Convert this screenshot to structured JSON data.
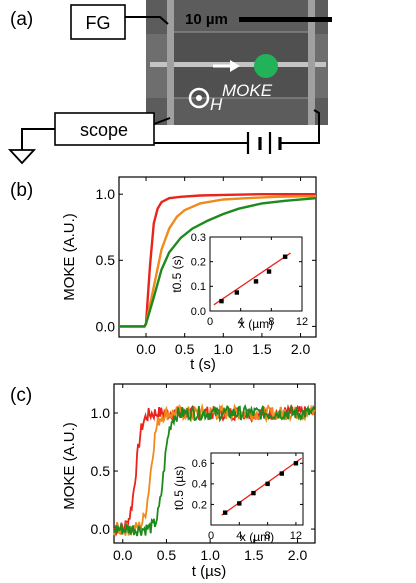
{
  "panel_a": {
    "label": "(a)",
    "fg_label": "FG",
    "scope_label": "scope",
    "scale_label": "10 µm",
    "moke_label": "MOKE",
    "field_label": "H",
    "colors": {
      "spot": "#22b35a",
      "sem_bg": "#6f6f6f",
      "wire": "#b9b9b9"
    }
  },
  "panel_b": {
    "label": "(b)",
    "chart_data": {
      "type": "line",
      "xlabel": "t (s)",
      "ylabel": "MOKE (A.U.)",
      "xlim": [
        -0.35,
        2.2
      ],
      "ylim": [
        -0.08,
        1.13
      ],
      "xticks": [
        0.0,
        0.5,
        1.0,
        1.5,
        2.0
      ],
      "xtick_labels": [
        "0.0",
        "0.5",
        "1.0",
        "1.5",
        "2.0"
      ],
      "yticks": [
        0.0,
        0.5,
        1.0
      ],
      "ytick_labels": [
        "0.0",
        "0.5",
        "1.0"
      ],
      "series": [
        {
          "color": "#e8241c",
          "x": [
            -0.35,
            -0.02,
            0.0,
            0.05,
            0.1,
            0.15,
            0.2,
            0.3,
            0.45,
            0.7,
            1.0,
            1.5,
            2.2
          ],
          "y": [
            0,
            0,
            0.02,
            0.45,
            0.78,
            0.89,
            0.94,
            0.97,
            0.98,
            0.99,
            0.995,
            1.0,
            1.0
          ]
        },
        {
          "color": "#f08a1c",
          "x": [
            -0.35,
            -0.02,
            0.0,
            0.1,
            0.2,
            0.3,
            0.4,
            0.5,
            0.7,
            1.0,
            1.3,
            1.7,
            2.2
          ],
          "y": [
            0,
            0,
            0.02,
            0.3,
            0.58,
            0.74,
            0.83,
            0.88,
            0.93,
            0.96,
            0.97,
            0.98,
            0.985
          ]
        },
        {
          "color": "#1e8a1e",
          "x": [
            -0.35,
            -0.02,
            0.0,
            0.1,
            0.2,
            0.3,
            0.45,
            0.6,
            0.8,
            1.0,
            1.2,
            1.5,
            1.8,
            2.2
          ],
          "y": [
            0,
            0,
            0.02,
            0.22,
            0.43,
            0.56,
            0.67,
            0.74,
            0.8,
            0.85,
            0.89,
            0.93,
            0.95,
            0.97
          ]
        }
      ],
      "inset": {
        "xlabel": "x (µm)",
        "ylabel": "t0.5 (s)",
        "xlim": [
          0,
          12
        ],
        "ylim": [
          0,
          0.3
        ],
        "xticks": [
          0,
          4,
          8,
          12
        ],
        "xtick_labels": [
          "0",
          "4",
          "8",
          "12"
        ],
        "yticks": [
          0.0,
          0.1,
          0.2,
          0.3
        ],
        "ytick_labels": [
          "0.0",
          "0.1",
          "0.2",
          "0.3"
        ],
        "points": {
          "x": [
            1.5,
            3.5,
            6.0,
            7.7,
            9.8
          ],
          "y": [
            0.04,
            0.075,
            0.12,
            0.16,
            0.22
          ]
        },
        "fit": {
          "x": [
            0.5,
            10.5
          ],
          "y": [
            0.025,
            0.235
          ],
          "color": "#e8241c"
        }
      }
    }
  },
  "panel_c": {
    "label": "(c)",
    "chart_data": {
      "type": "line",
      "xlabel": "t (µs)",
      "ylabel": "MOKE (A.U.)",
      "xlim": [
        -0.1,
        2.2
      ],
      "ylim": [
        -0.12,
        1.25
      ],
      "xticks": [
        0.0,
        0.5,
        1.0,
        1.5,
        2.0
      ],
      "xtick_labels": [
        "0.0",
        "0.5",
        "1.0",
        "1.5",
        "2.0"
      ],
      "yticks": [
        0.0,
        0.5,
        1.0
      ],
      "ytick_labels": [
        "0.0",
        "0.5",
        "1.0"
      ],
      "series": [
        {
          "color": "#e8241c",
          "rise": 0.15,
          "width": 0.035
        },
        {
          "color": "#f08a1c",
          "rise": 0.32,
          "width": 0.035
        },
        {
          "color": "#1e8a1e",
          "rise": 0.47,
          "width": 0.035
        }
      ],
      "inset": {
        "xlabel": "x (µm)",
        "ylabel": "t0.5 (µs)",
        "xlim": [
          0,
          13
        ],
        "ylim": [
          0,
          0.7
        ],
        "xticks": [
          0,
          4,
          8,
          12
        ],
        "xtick_labels": [
          "0",
          "4",
          "8",
          "12"
        ],
        "yticks": [
          0.2,
          0.4,
          0.6
        ],
        "ytick_labels": [
          "0.2",
          "0.4",
          "0.6"
        ],
        "points": {
          "x": [
            2,
            4,
            6,
            8,
            10,
            12
          ],
          "y": [
            0.12,
            0.21,
            0.31,
            0.4,
            0.5,
            0.6
          ]
        },
        "fit": {
          "x": [
            1.5,
            12.8
          ],
          "y": [
            0.095,
            0.65
          ],
          "color": "#e8241c"
        }
      }
    }
  }
}
